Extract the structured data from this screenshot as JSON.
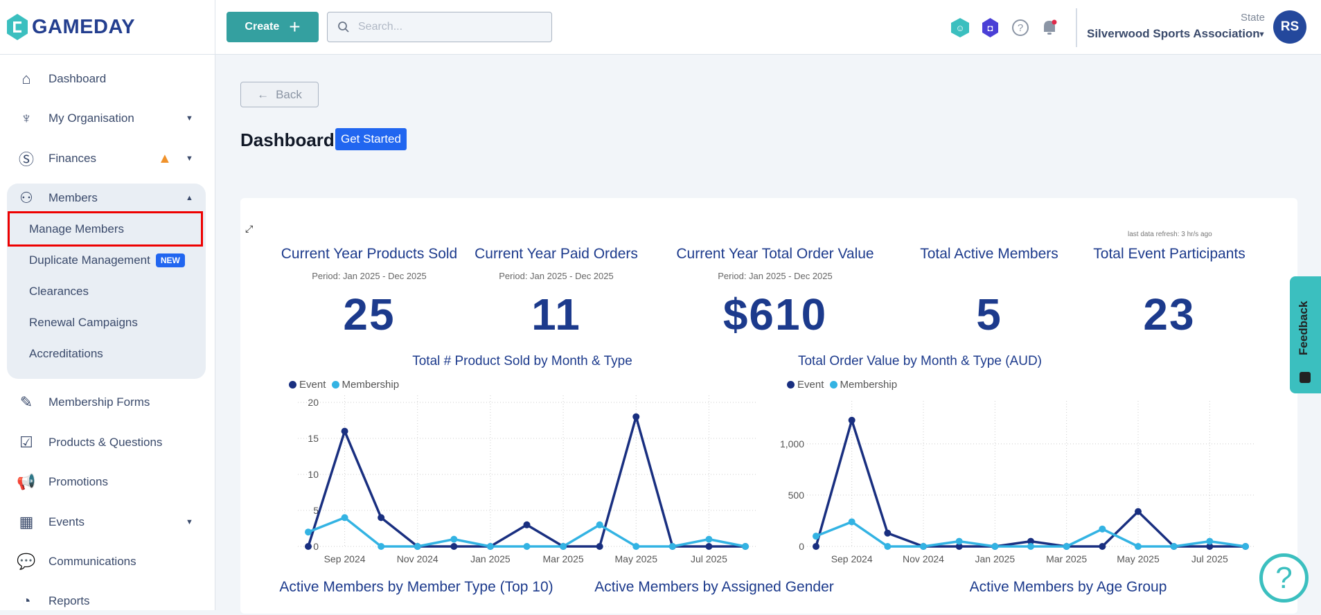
{
  "header": {
    "logo": "GAMEDAY",
    "create_label": "Create",
    "search_placeholder": "Search...",
    "state_label": "State",
    "org_name": "Silverwood Sports Association",
    "avatar_initials": "RS"
  },
  "sidebar": {
    "items": [
      {
        "label": "Dashboard",
        "icon": "home-icon"
      },
      {
        "label": "My Organisation",
        "icon": "org-chart-icon"
      },
      {
        "label": "Finances",
        "icon": "dollar-icon"
      },
      {
        "label": "Members",
        "icon": "members-icon"
      },
      {
        "label": "Membership Forms",
        "icon": "form-icon"
      },
      {
        "label": "Products & Questions",
        "icon": "products-icon"
      },
      {
        "label": "Promotions",
        "icon": "megaphone-icon"
      },
      {
        "label": "Events",
        "icon": "calendar-icon"
      },
      {
        "label": "Communications",
        "icon": "chat-icon"
      },
      {
        "label": "Reports",
        "icon": "pie-chart-icon"
      }
    ],
    "members_sub": [
      {
        "label": "Manage Members"
      },
      {
        "label": "Duplicate Management",
        "badge": "NEW"
      },
      {
        "label": "Clearances"
      },
      {
        "label": "Renewal Campaigns"
      },
      {
        "label": "Accreditations"
      }
    ]
  },
  "main": {
    "back_label": "Back",
    "title": "Dashboard",
    "get_started": "Get Started",
    "refresh": "last data refresh: 3 hr/s ago",
    "kpis": [
      {
        "title": "Current Year Products Sold",
        "period": "Period: Jan 2025 - Dec 2025",
        "value": "25"
      },
      {
        "title": "Current Year Paid Orders",
        "period": "Period: Jan 2025 - Dec 2025",
        "value": "11"
      },
      {
        "title": "Current Year Total Order Value",
        "period": "Period: Jan 2025 - Dec 2025",
        "value": "$610"
      },
      {
        "title": "Total Active Members",
        "period": "",
        "value": "5"
      },
      {
        "title": "Total Event Participants",
        "period": "",
        "value": "23"
      }
    ],
    "bottom_titles": [
      "Active Members by Member Type (Top 10)",
      "Active Members by Assigned Gender",
      "Active Members by Age Group"
    ]
  },
  "feedback": "Feedback",
  "colors": {
    "event": "#192f80",
    "membership": "#33b3e3",
    "accent": "#34a0a0"
  },
  "chart_data": [
    {
      "type": "line",
      "title": "Total # Product Sold by Month & Type",
      "x": [
        "Aug 2024",
        "Sep 2024",
        "Oct 2024",
        "Nov 2024",
        "Dec 2024",
        "Jan 2025",
        "Feb 2025",
        "Mar 2025",
        "Apr 2025",
        "May 2025",
        "Jun 2025",
        "Jul 2025",
        "Aug 2025"
      ],
      "x_tick_labels": [
        "Sep 2024",
        "Nov 2024",
        "Jan 2025",
        "Mar 2025",
        "May 2025",
        "Jul 2025"
      ],
      "y_ticks": [
        "0",
        "5",
        "10",
        "15",
        "20"
      ],
      "y_tick_values": [
        0,
        5,
        10,
        15,
        20
      ],
      "ylim": [
        0,
        20
      ],
      "grid": true,
      "legend": "top-left",
      "series": [
        {
          "name": "Event",
          "values": [
            0,
            16,
            4,
            0,
            0,
            0,
            3,
            0,
            0,
            18,
            0,
            0,
            0
          ]
        },
        {
          "name": "Membership",
          "values": [
            2,
            4,
            0,
            0,
            1,
            0,
            0,
            0,
            3,
            0,
            0,
            1,
            0
          ]
        }
      ]
    },
    {
      "type": "line",
      "title": "Total Order Value by Month & Type (AUD)",
      "x": [
        "Aug 2024",
        "Sep 2024",
        "Oct 2024",
        "Nov 2024",
        "Dec 2024",
        "Jan 2025",
        "Feb 2025",
        "Mar 2025",
        "Apr 2025",
        "May 2025",
        "Jun 2025",
        "Jul 2025",
        "Aug 2025"
      ],
      "x_tick_labels": [
        "Sep 2024",
        "Nov 2024",
        "Jan 2025",
        "Mar 2025",
        "May 2025",
        "Jul 2025"
      ],
      "y_ticks": [
        "0",
        "500",
        "1,000"
      ],
      "y_tick_values": [
        0,
        500,
        1000
      ],
      "ylim": [
        0,
        1350
      ],
      "grid": true,
      "legend": "top-left",
      "series": [
        {
          "name": "Event",
          "values": [
            0,
            1230,
            130,
            0,
            0,
            0,
            50,
            0,
            0,
            340,
            0,
            0,
            0
          ]
        },
        {
          "name": "Membership",
          "values": [
            100,
            240,
            0,
            0,
            50,
            0,
            0,
            0,
            170,
            0,
            0,
            50,
            0
          ]
        }
      ]
    }
  ]
}
